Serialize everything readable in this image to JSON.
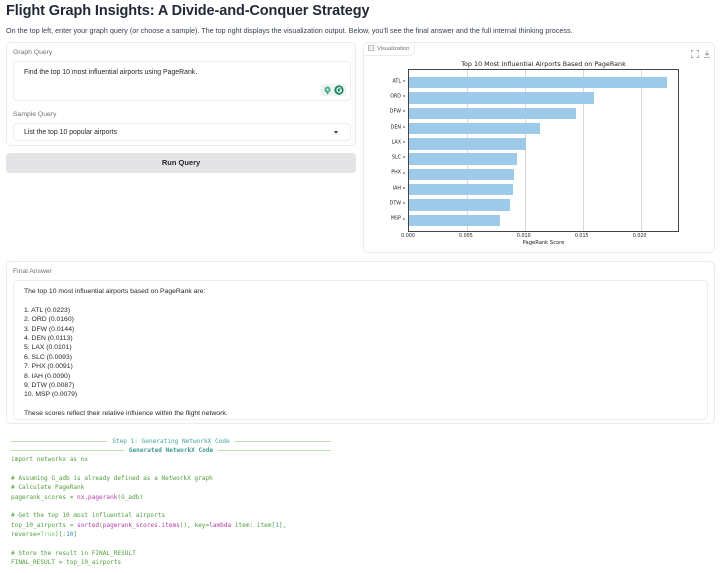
{
  "header": {
    "title": "Flight Graph Insights: A Divide-and-Conquer Strategy",
    "description": "On the top left, enter your graph query (or choose a sample). The top right displays the visualization output. Below, you'll see the final answer and the full internal thinking process."
  },
  "query_panel": {
    "graph_query_label": "Graph Query",
    "graph_query_value": "Find the top 10 most influential airports using PageRank.",
    "sample_query_label": "Sample Query",
    "sample_query_value": "List the top 10 popular airports",
    "run_button_label": "Run Query",
    "icons": [
      "lightbulb-icon",
      "grammarly-icon"
    ]
  },
  "visualization": {
    "label": "Visualization",
    "icons": [
      "image-icon",
      "fullscreen-icon",
      "download-icon"
    ]
  },
  "chart_data": {
    "type": "bar",
    "orientation": "horizontal",
    "title": "Top 10 Most Influential Airports Based on PageRank",
    "xlabel": "PageRank Score",
    "ylabel": "",
    "categories": [
      "ATL",
      "ORD",
      "DFW",
      "DEN",
      "LAX",
      "SLC",
      "PHX",
      "IAH",
      "DTW",
      "MSP"
    ],
    "values": [
      0.0223,
      0.016,
      0.0144,
      0.0113,
      0.0101,
      0.0093,
      0.0091,
      0.009,
      0.0087,
      0.0079
    ],
    "xticks": [
      "0.000",
      "0.005",
      "0.010",
      "0.015",
      "0.020"
    ],
    "xlim": [
      0,
      0.0234
    ],
    "grid": "x",
    "bar_color": "#9ecae9"
  },
  "final_answer": {
    "label": "Final Answer",
    "intro": "The top 10 most influential airports based on PageRank are:",
    "items": [
      "1. ATL (0.0223)",
      "2. ORD (0.0160)",
      "3. DFW (0.0144)",
      "4. DEN (0.0113)",
      "5. LAX (0.0101)",
      "6. SLC (0.0093)",
      "7. PHX (0.0091)",
      "8. IAH (0.0090)",
      "9. DTW (0.0087)",
      "10. MSP (0.0079)"
    ],
    "outro": "These scores reflect their relative influence within the flight network."
  },
  "log": {
    "step_header": "Step 1: Generating NetworkX Code",
    "sub_header": "Generated NetworkX Code",
    "code_lines": [
      "import networkx as nx",
      "",
      "# Assuming G_adb is already defined as a NetworkX graph",
      "# Calculate PageRank",
      "pagerank_scores = nx.pagerank(G_adb)",
      "",
      "# Get the top 10 most influential airports",
      "top_10_airports = sorted(pagerank_scores.items(), key=lambda item: item[1],",
      "reverse=True)[:10]",
      "",
      "# Store the result in FINAL_RESULT",
      "FINAL_RESULT = top_10_airports"
    ]
  },
  "colors": {
    "bar": "#9ecae9",
    "button_bg": "#e4e4e7",
    "code_green": "#4f9f3c",
    "code_teal": "#45a1a0",
    "code_magenta": "#b93aa8"
  }
}
